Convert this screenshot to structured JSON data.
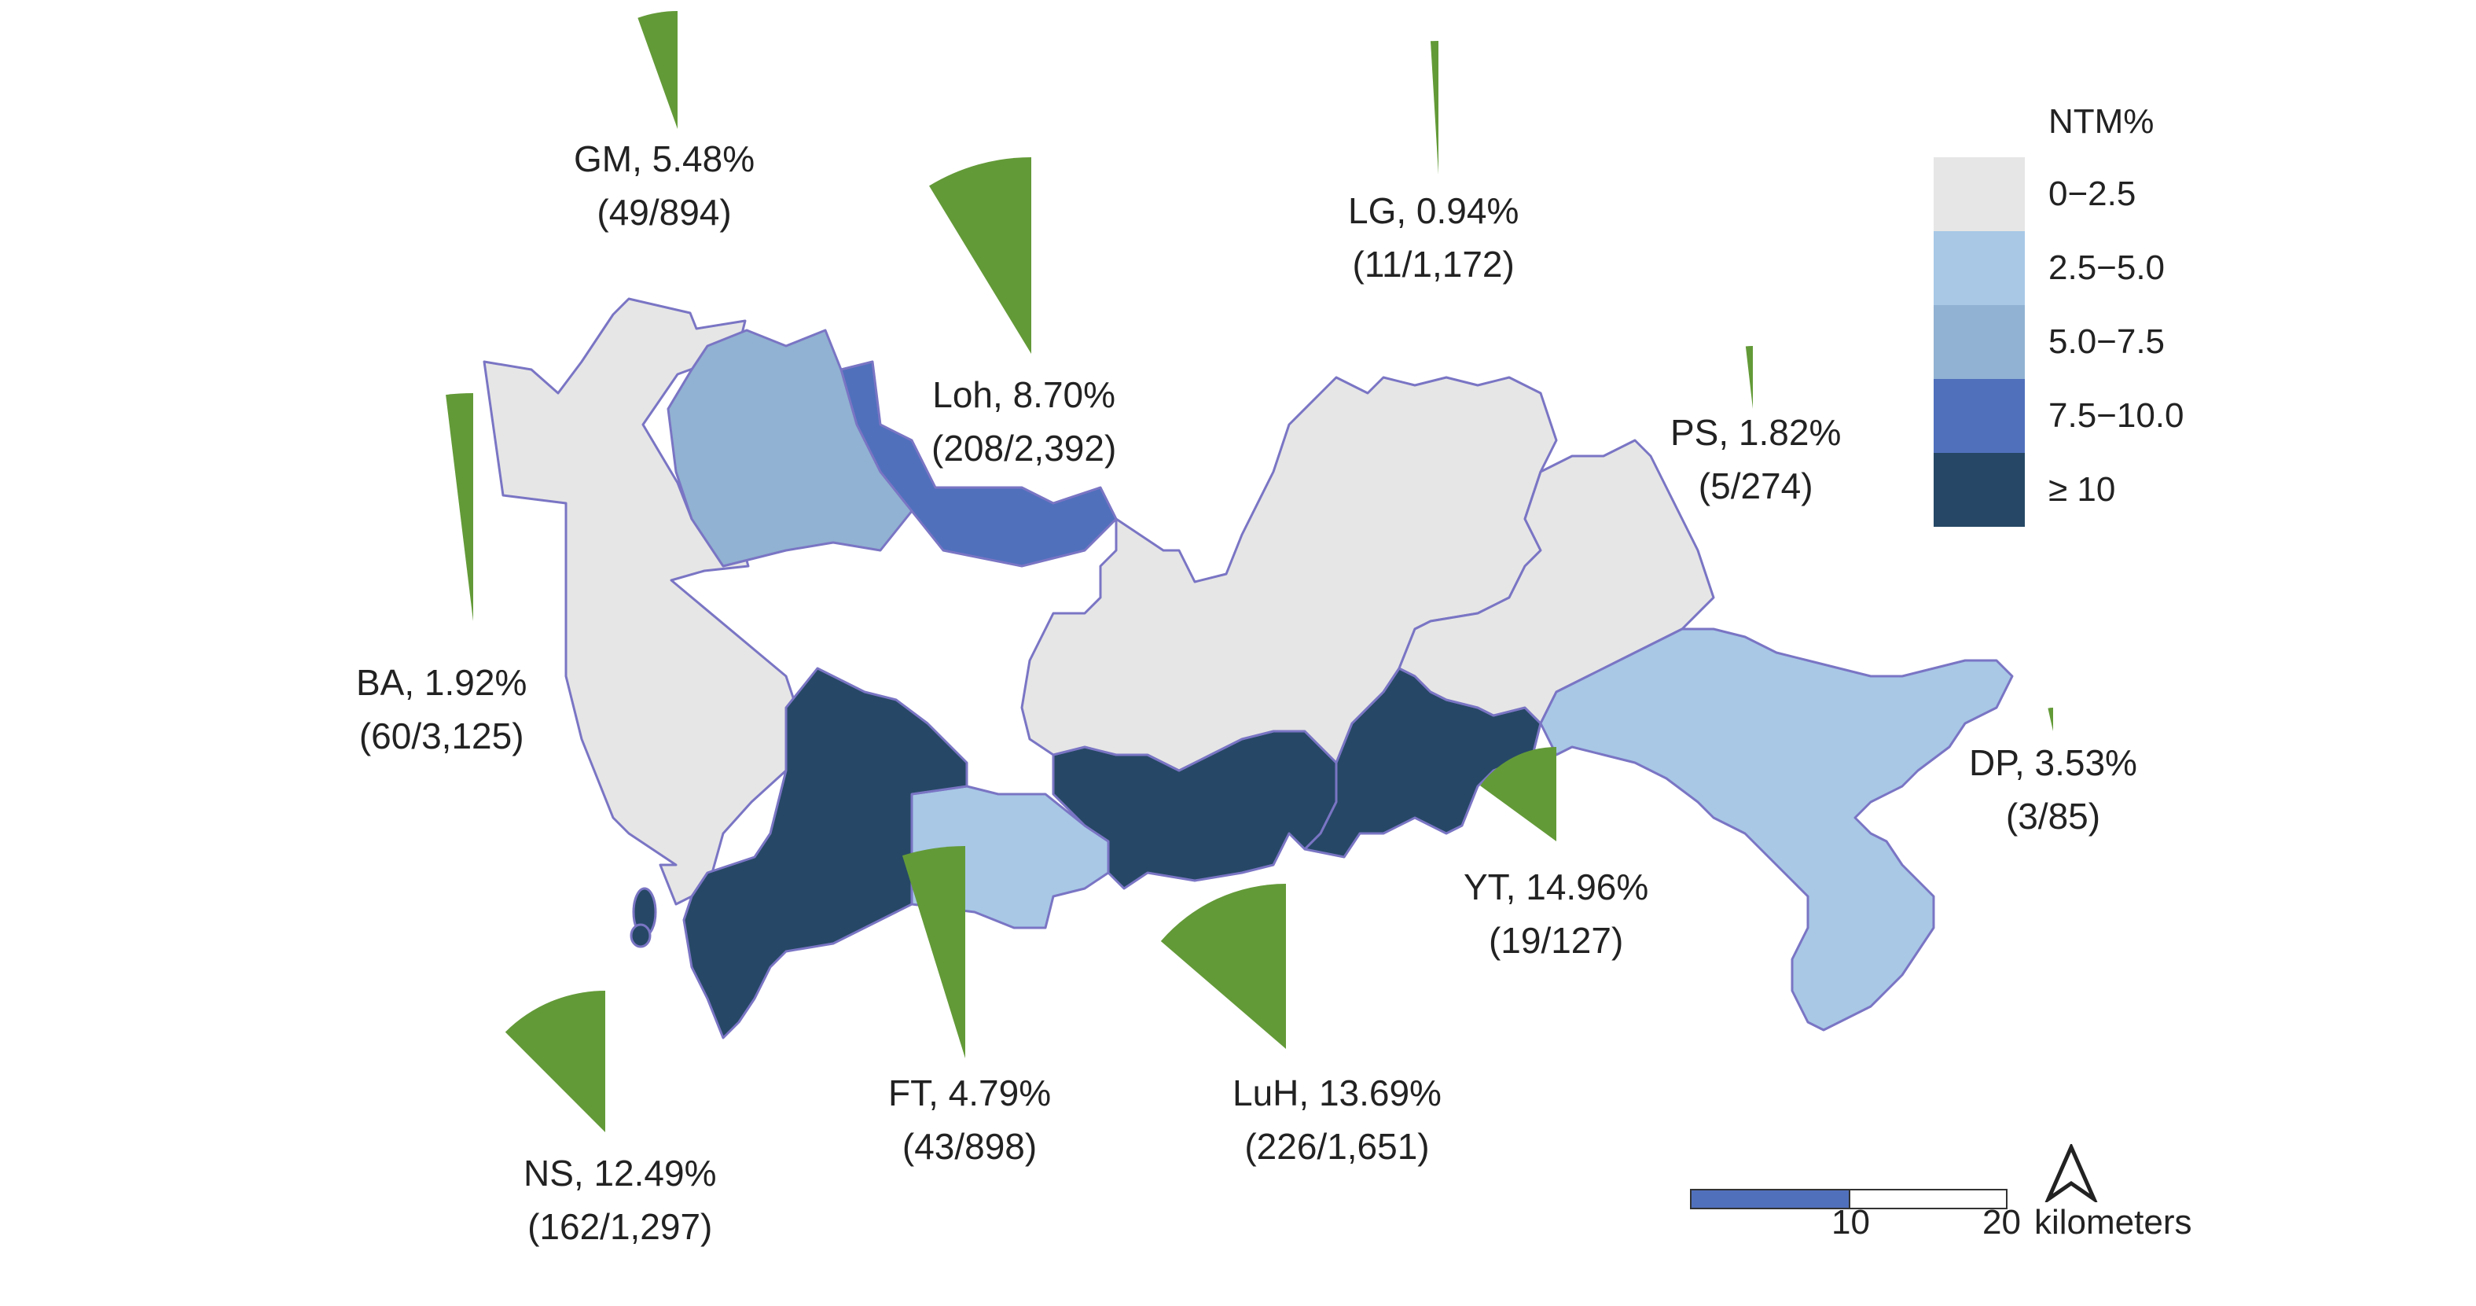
{
  "legend": {
    "title": "NTM%",
    "classes": [
      {
        "label": "0−2.5",
        "color": "#e6e6e6"
      },
      {
        "label": "2.5−5.0",
        "color": "#a8c8e6"
      },
      {
        "label": "5.0−7.5",
        "color": "#91b2d2"
      },
      {
        "label": "7.5−10.0",
        "color": "#5070bc"
      },
      {
        "label": "≥ 10",
        "color": "#264866"
      }
    ]
  },
  "pie_color": "#639a38",
  "districts": [
    {
      "id": "GM",
      "name": "GM",
      "percent": "5.48%",
      "ratio": "(49/894)",
      "value": 5.48,
      "class": 2
    },
    {
      "id": "Loh",
      "name": "Loh",
      "percent": "8.70%",
      "ratio": "(208/2,392)",
      "value": 8.7,
      "class": 3
    },
    {
      "id": "LG",
      "name": "LG",
      "percent": "0.94%",
      "ratio": "(11/1,172)",
      "value": 0.94,
      "class": 0
    },
    {
      "id": "PS",
      "name": "PS",
      "percent": "1.82%",
      "ratio": "(5/274)",
      "value": 1.82,
      "class": 0
    },
    {
      "id": "BA",
      "name": "BA",
      "percent": "1.92%",
      "ratio": "(60/3,125)",
      "value": 1.92,
      "class": 0
    },
    {
      "id": "DP",
      "name": "DP",
      "percent": "3.53%",
      "ratio": "(3/85)",
      "value": 3.53,
      "class": 1
    },
    {
      "id": "YT",
      "name": "YT",
      "percent": "14.96%",
      "ratio": "(19/127)",
      "value": 14.96,
      "class": 4
    },
    {
      "id": "FT",
      "name": "FT",
      "percent": "4.79%",
      "ratio": "(43/898)",
      "value": 4.79,
      "class": 1
    },
    {
      "id": "LuH",
      "name": "LuH",
      "percent": "13.69%",
      "ratio": "(226/1,651)",
      "value": 13.69,
      "class": 4
    },
    {
      "id": "NS",
      "name": "NS",
      "percent": "12.49%",
      "ratio": "(162/1,297)",
      "value": 12.49,
      "class": 4
    }
  ],
  "scale": {
    "ticks": [
      "10",
      "20"
    ],
    "unit": "kilometers"
  }
}
